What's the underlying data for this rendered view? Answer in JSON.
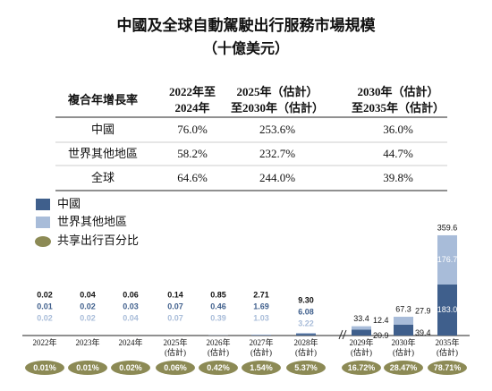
{
  "header": {
    "title": "中國及全球自動駕駛出行服務市場規模",
    "subtitle": "（十億美元）"
  },
  "table": {
    "header": [
      "複合年增長率",
      [
        "2022年至",
        "2024年"
      ],
      [
        "2025年（估計）",
        "至2030年（估計）"
      ],
      [
        "2030年（估計）",
        "至2035年（估計）"
      ]
    ],
    "rows": [
      [
        "中國",
        "76.0%",
        "253.6%",
        "36.0%"
      ],
      [
        "世界其他地區",
        "58.2%",
        "232.7%",
        "44.7%"
      ],
      [
        "全球",
        "64.6%",
        "244.0%",
        "39.8%"
      ]
    ]
  },
  "chart_data": {
    "type": "stacked-bar",
    "categories": [
      [
        "2022年"
      ],
      [
        "2023年"
      ],
      [
        "2024年"
      ],
      [
        "2025年",
        "(估計)"
      ],
      [
        "2026年",
        "(估計)"
      ],
      [
        "2027年",
        "(估計)"
      ],
      [
        "2028年",
        "(估計)"
      ],
      [
        "2029年",
        "(估計)"
      ],
      [
        "2030年",
        "(估計)"
      ],
      [
        "2035年",
        "(估計)"
      ]
    ],
    "series": [
      {
        "name": "中國",
        "color": "#3f5f8c",
        "values": [
          0.01,
          0.02,
          0.03,
          0.07,
          0.46,
          1.69,
          6.08,
          20.9,
          39.4,
          183.0
        ],
        "value_labels": [
          "0.01",
          "0.02",
          "0.03",
          "0.07",
          "0.46",
          "1.69",
          "6.08",
          "20.9",
          "39.4",
          "183.0"
        ]
      },
      {
        "name": "世界其他地區",
        "color": "#a8bcd9",
        "values": [
          0.02,
          0.02,
          0.04,
          0.07,
          0.39,
          1.03,
          3.22,
          12.4,
          27.9,
          176.7
        ],
        "value_labels": [
          "0.02",
          "0.02",
          "0.04",
          "0.07",
          "0.39",
          "1.03",
          "3.22",
          "12.4",
          "27.9",
          "176.7"
        ]
      }
    ],
    "totals": [
      0.02,
      0.04,
      0.06,
      0.14,
      0.85,
      2.71,
      9.3,
      33.4,
      67.3,
      359.6
    ],
    "totals_labels": [
      "0.02",
      "0.04",
      "0.06",
      "0.14",
      "0.85",
      "2.71",
      "9.30",
      "33.4",
      "67.3",
      "359.6"
    ],
    "share": {
      "name": "共享出行百分比",
      "color": "#8c8a55",
      "values": [
        0.01,
        0.01,
        0.02,
        0.06,
        0.42,
        1.54,
        5.37,
        16.72,
        28.47,
        78.71
      ],
      "value_labels": [
        "0.01%",
        "0.01%",
        "0.02%",
        "0.06%",
        "0.42%",
        "1.54%",
        "5.37%",
        "16.72%",
        "28.47%",
        "78.71%"
      ]
    }
  }
}
